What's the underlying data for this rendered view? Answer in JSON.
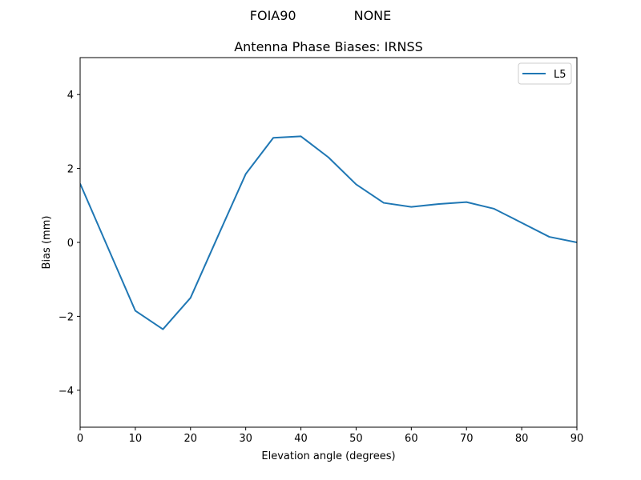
{
  "figure": {
    "suptitle_left": "FOIA90",
    "suptitle_right": "NONE",
    "title": "Antenna Phase Biases: IRNSS"
  },
  "chart_data": {
    "type": "line",
    "title": "Antenna Phase Biases: IRNSS",
    "suptitle": "FOIA90          NONE",
    "xlabel": "Elevation angle (degrees)",
    "ylabel": "Bias (mm)",
    "xlim": [
      0,
      90
    ],
    "ylim": [
      -5,
      5
    ],
    "xticks": [
      0,
      10,
      20,
      30,
      40,
      50,
      60,
      70,
      80,
      90
    ],
    "yticks": [
      -4,
      -2,
      0,
      2,
      4
    ],
    "ytick_labels": [
      "−4",
      "−2",
      "0",
      "2",
      "4"
    ],
    "grid": false,
    "legend_position": "upper right",
    "x": [
      0,
      5,
      10,
      15,
      20,
      25,
      30,
      35,
      40,
      45,
      50,
      55,
      60,
      65,
      70,
      75,
      80,
      85,
      90
    ],
    "series": [
      {
        "name": "L5",
        "color": "#1f77b4",
        "values": [
          1.59,
          -0.13,
          -1.85,
          -2.35,
          -1.5,
          0.18,
          1.85,
          2.83,
          2.87,
          2.3,
          1.57,
          1.07,
          0.96,
          1.04,
          1.09,
          0.91,
          0.53,
          0.15,
          0.0
        ]
      }
    ]
  }
}
